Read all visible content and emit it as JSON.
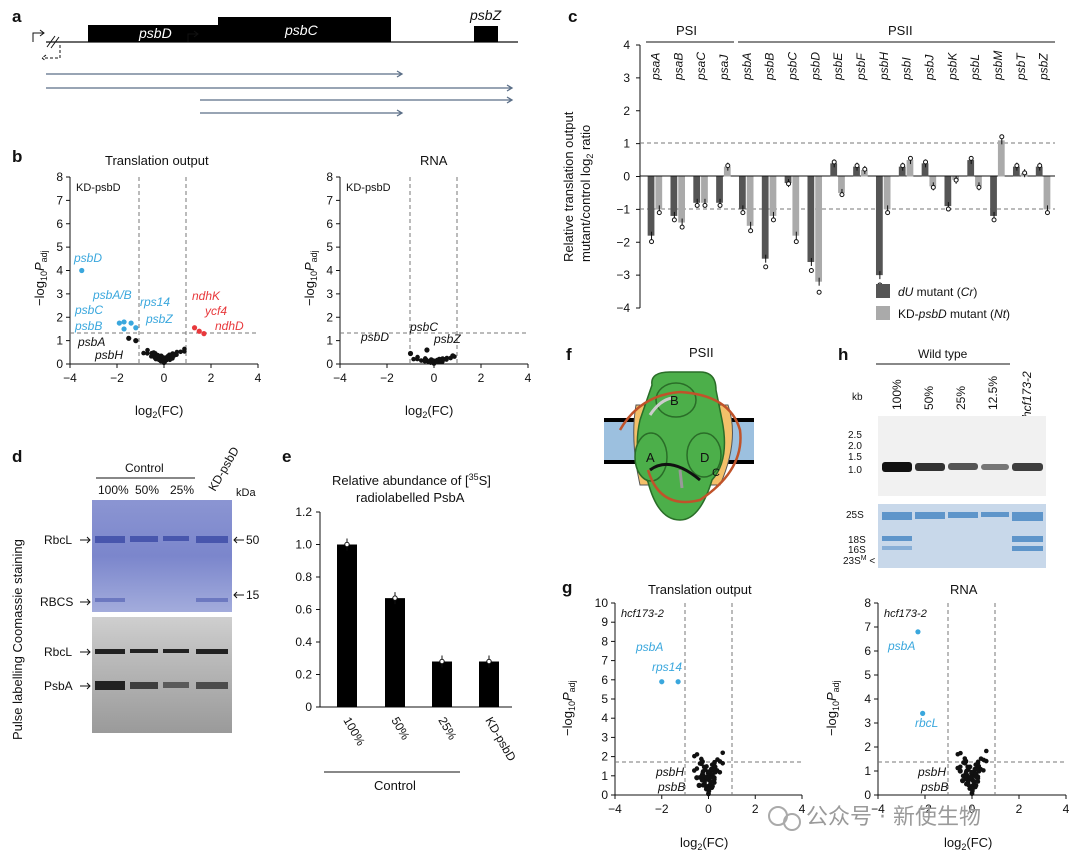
{
  "panel_labels": {
    "a": "a",
    "b": "b",
    "c": "c",
    "d": "d",
    "e": "e",
    "f": "f",
    "g": "g",
    "h": "h"
  },
  "panel_a": {
    "genes": [
      "psbD",
      "psbC",
      "psbZ"
    ]
  },
  "volcano_b1": {
    "title": "Translation output",
    "inset": "KD-psbD",
    "blue_labels": [
      "psbD",
      "psbA/B",
      "psbC",
      "psbB",
      "rps14",
      "psbZ"
    ],
    "red_labels": [
      "ndhK",
      "ycf4",
      "ndhD"
    ],
    "black_labels": [
      "psbA",
      "psbH"
    ]
  },
  "volcano_b2": {
    "title": "RNA",
    "inset": "KD-psbD",
    "black_labels": [
      "psbD",
      "psbC",
      "psbZ"
    ]
  },
  "volcano_axes": {
    "xlabel": "log2(FC)",
    "ylabel": "−log10Padj",
    "xticks": [
      "−4",
      "−2",
      "0",
      "2",
      "4"
    ],
    "yticks_b": [
      "0",
      "1",
      "2",
      "3",
      "4",
      "5",
      "6",
      "7",
      "8"
    ],
    "yticks_g": [
      "0",
      "1",
      "2",
      "3",
      "4",
      "5",
      "6",
      "7",
      "8",
      "9",
      "10"
    ]
  },
  "panel_c": {
    "group1": "PSI",
    "group2": "PSII",
    "ylabel1": "Relative translation output",
    "ylabel2": "mutant/control log2 ratio",
    "yticks": [
      "4",
      "3",
      "2",
      "1",
      "0",
      "−1",
      "−2",
      "−3",
      "−4"
    ],
    "legend1": "dU mutant (Cr)",
    "legend2": "KD-psbD mutant (Nt)",
    "colors": {
      "dark": "#555555",
      "light": "#aaaaaa"
    }
  },
  "panel_d": {
    "control": "Control",
    "lanes": [
      "100%",
      "50%",
      "25%",
      "KD-psbD"
    ],
    "unit": "kDa",
    "markers_top": [
      "50",
      "15"
    ],
    "bands_top": [
      "RbcL",
      "RBCS"
    ],
    "bands_bottom": [
      "RbcL",
      "PsbA"
    ],
    "ylabel": "Pulse labelling Coomassie staining"
  },
  "panel_e": {
    "title1": "Relative abundance of [35S]",
    "title2": "radiolabelled PsbA",
    "yticks": [
      "0",
      "0.2",
      "0.4",
      "0.6",
      "0.8",
      "1.0",
      "1.2"
    ],
    "control": "Control"
  },
  "panel_f": {
    "title": "PSII",
    "subunits": [
      "B",
      "A",
      "D",
      "C"
    ]
  },
  "volcano_g1": {
    "title": "Translation output",
    "inset": "hcf173-2",
    "blue_labels": [
      "psbA",
      "rps14"
    ],
    "black_labels": [
      "psbH",
      "psbB"
    ]
  },
  "volcano_g2": {
    "title": "RNA",
    "inset": "hcf173-2",
    "blue_labels": [
      "psbA",
      "rbcL"
    ],
    "black_labels": [
      "psbH",
      "psbB"
    ]
  },
  "panel_h": {
    "wild_type": "Wild type",
    "lanes": [
      "100%",
      "50%",
      "25%",
      "12.5%",
      "hcf173-2"
    ],
    "unit": "kb",
    "sizes": [
      "2.5",
      "2.0",
      "1.5",
      "1.0"
    ],
    "rrna": [
      "25S",
      "18S",
      "16S",
      "23S"
    ]
  },
  "watermark": "公众号 · 新使生物",
  "chart_data": [
    {
      "type": "bar",
      "title": "Relative translation output mutant/control log2 ratio",
      "categories": [
        "psaA",
        "psaB",
        "psaC",
        "psaJ",
        "psbA",
        "psbB",
        "psbC",
        "psbD",
        "psbE",
        "psbF",
        "psbH",
        "psbI",
        "psbJ",
        "psbK",
        "psbL",
        "psbM",
        "psbT",
        "psbZ"
      ],
      "series": [
        {
          "name": "dU mutant (Cr)",
          "values": [
            -1.8,
            -1.2,
            -0.8,
            -0.8,
            -1.0,
            -2.5,
            -0.2,
            -2.6,
            0.4,
            0.3,
            -3.0,
            0.3,
            0.4,
            -0.9,
            0.5,
            -1.2,
            0.3,
            0.3
          ]
        },
        {
          "name": "KD-psbD mutant (Nt)",
          "values": [
            -1.0,
            -1.4,
            -0.8,
            0.3,
            -1.5,
            -1.2,
            -1.8,
            -3.2,
            -0.5,
            0.2,
            -1.0,
            0.5,
            -0.3,
            -0.1,
            -0.3,
            1.1,
            0.1,
            -1.0
          ]
        }
      ],
      "ylim": [
        -4,
        4
      ]
    },
    {
      "type": "bar",
      "title": "Relative abundance of [35S] radiolabelled PsbA",
      "categories": [
        "100%",
        "50%",
        "25%",
        "KD-psbD"
      ],
      "values": [
        1.0,
        0.67,
        0.28,
        0.28
      ],
      "ylim": [
        0,
        1.2
      ]
    },
    {
      "type": "scatter",
      "title": "Translation output (KD-psbD)",
      "labeled_points": [
        {
          "label": "psbD",
          "x": -3.5,
          "y": 4.0
        },
        {
          "label": "psbA/B",
          "x": -1.7,
          "y": 1.8
        },
        {
          "label": "psbC",
          "x": -1.9,
          "y": 1.75
        },
        {
          "label": "psbB",
          "x": -1.7,
          "y": 1.5
        },
        {
          "label": "rps14",
          "x": -1.4,
          "y": 1.75
        },
        {
          "label": "psbZ",
          "x": -1.2,
          "y": 1.55
        },
        {
          "label": "ndhK",
          "x": 1.3,
          "y": 1.55
        },
        {
          "label": "ycf4",
          "x": 1.5,
          "y": 1.4
        },
        {
          "label": "ndhD",
          "x": 1.7,
          "y": 1.3
        },
        {
          "label": "psbA",
          "x": -1.5,
          "y": 1.1
        },
        {
          "label": "psbH",
          "x": -1.2,
          "y": 1.0
        }
      ],
      "xlim": [
        -4,
        4
      ],
      "ylim": [
        0,
        8
      ]
    },
    {
      "type": "scatter",
      "title": "RNA (KD-psbD)",
      "labeled_points": [
        {
          "label": "psbD",
          "x": -1.0,
          "y": 0.45
        },
        {
          "label": "psbC",
          "x": -0.3,
          "y": 0.6
        },
        {
          "label": "psbZ",
          "x": 0.8,
          "y": 0.35
        }
      ],
      "xlim": [
        -4,
        4
      ],
      "ylim": [
        0,
        8
      ]
    },
    {
      "type": "scatter",
      "title": "Translation output (hcf173-2)",
      "labeled_points": [
        {
          "label": "psbA",
          "x": -2.0,
          "y": 5.9
        },
        {
          "label": "rps14",
          "x": -1.3,
          "y": 5.9
        },
        {
          "label": "psbH",
          "x": -0.5,
          "y": 0.9
        },
        {
          "label": "psbB",
          "x": -0.4,
          "y": 0.5
        }
      ],
      "xlim": [
        -4,
        4
      ],
      "ylim": [
        0,
        10
      ]
    },
    {
      "type": "scatter",
      "title": "RNA (hcf173-2)",
      "labeled_points": [
        {
          "label": "psbA",
          "x": -2.3,
          "y": 6.8
        },
        {
          "label": "rbcL",
          "x": -2.1,
          "y": 3.4
        },
        {
          "label": "psbH",
          "x": -0.5,
          "y": 1.0
        },
        {
          "label": "psbB",
          "x": -0.4,
          "y": 0.6
        }
      ],
      "xlim": [
        -4,
        4
      ],
      "ylim": [
        0,
        8
      ]
    }
  ]
}
